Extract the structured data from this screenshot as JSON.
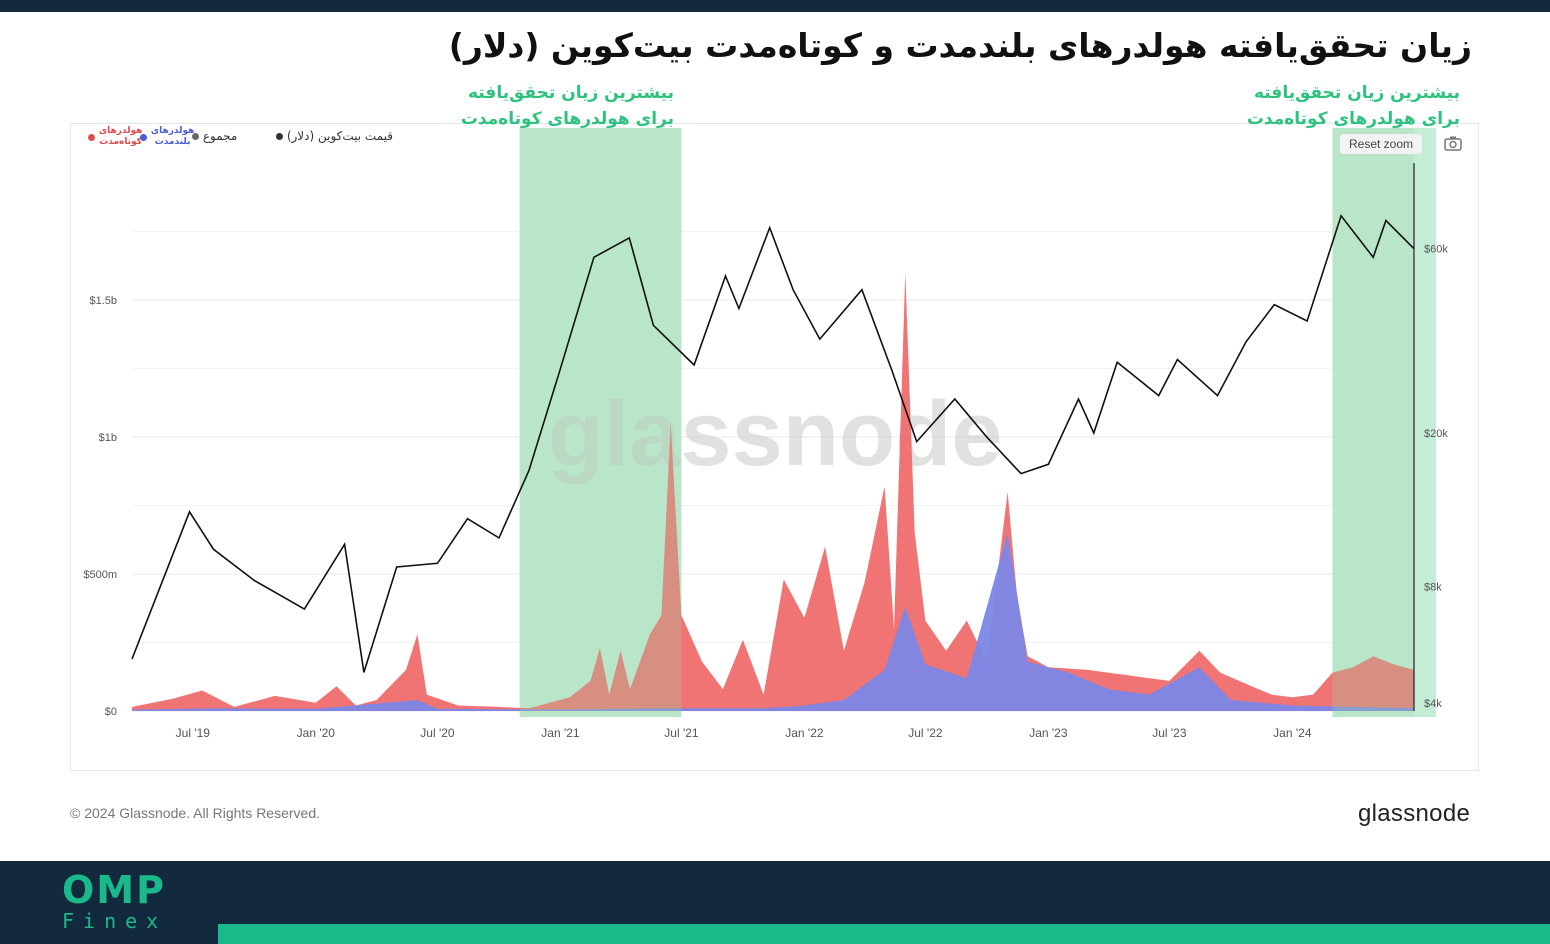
{
  "page": {
    "title": "زیان تحقق‌یافته هولدرهای بلندمدت و کوتاه‌مدت بیت‌کوین (دلار)",
    "annotations": [
      {
        "line1": "بیشترین زیان تحقق‌یافته",
        "line2": "برای هولدرهای کوتاه‌مدت"
      },
      {
        "line1": "بیشترین زیان تحقق‌یافته",
        "line2": "برای هولدرهای کوتاه‌مدت"
      }
    ],
    "reset_zoom": "Reset zoom",
    "copyright": "© 2024 Glassnode. All Rights Reserved.",
    "brand": "glassnode",
    "watermark": "glassnode",
    "footer_logo_top": "OMP",
    "footer_logo_bottom": "Finex",
    "legend": {
      "sth_line1": "هولدرهای",
      "sth_line2": "کوتاه‌مدت",
      "lth_line1": "هولدرهای",
      "lth_line2": "بلندمدت",
      "total": "مجموع",
      "price": "قیمت بیت‌کوین (دلار)"
    },
    "colors": {
      "sth": "#f06d6d",
      "lth": "#7b87e6",
      "price": "#111111",
      "highlight": "#c5ecd6",
      "accent": "#19b98a",
      "annotation": "#2ec27e"
    }
  },
  "chart_data": {
    "type": "area",
    "x_ticks": [
      "Jul '19",
      "Jan '20",
      "Jul '20",
      "Jan '21",
      "Jul '21",
      "Jan '22",
      "Jul '22",
      "Jan '23",
      "Jul '23",
      "Jan '24"
    ],
    "y_left": {
      "ticks": [
        "$0",
        "$500m",
        "$1b",
        "$1.5b"
      ],
      "tick_values": [
        0,
        500,
        1000,
        1500
      ],
      "range": [
        0,
        2000
      ],
      "unit": "USD millions"
    },
    "y_right": {
      "scale": "log",
      "ticks": [
        "$4k",
        "$8k",
        "$20k",
        "$60k"
      ],
      "tick_values": [
        4000,
        8000,
        20000,
        60000
      ],
      "range": [
        4000,
        100000
      ]
    },
    "x_range": [
      "2019-04-01",
      "2024-07-01"
    ],
    "highlight_ranges": [
      [
        "2020-11-01",
        "2021-07-01"
      ],
      [
        "2024-03-01",
        "2024-07-01"
      ]
    ],
    "series": [
      {
        "name": "هولدرهای کوتاه‌مدت",
        "kind": "area",
        "points": [
          [
            "2019-04-01",
            15
          ],
          [
            "2019-06-01",
            45
          ],
          [
            "2019-07-15",
            75
          ],
          [
            "2019-09-01",
            15
          ],
          [
            "2019-11-01",
            55
          ],
          [
            "2020-01-01",
            30
          ],
          [
            "2020-02-01",
            90
          ],
          [
            "2020-03-01",
            20
          ],
          [
            "2020-04-01",
            40
          ],
          [
            "2020-05-15",
            150
          ],
          [
            "2020-06-01",
            280
          ],
          [
            "2020-06-15",
            60
          ],
          [
            "2020-08-01",
            20
          ],
          [
            "2020-10-01",
            15
          ],
          [
            "2020-11-15",
            10
          ],
          [
            "2021-01-15",
            50
          ],
          [
            "2021-02-15",
            110
          ],
          [
            "2021-03-01",
            230
          ],
          [
            "2021-03-15",
            60
          ],
          [
            "2021-04-01",
            220
          ],
          [
            "2021-04-15",
            80
          ],
          [
            "2021-05-15",
            280
          ],
          [
            "2021-06-01",
            350
          ],
          [
            "2021-06-15",
            1050
          ],
          [
            "2021-07-01",
            350
          ],
          [
            "2021-08-01",
            180
          ],
          [
            "2021-09-01",
            80
          ],
          [
            "2021-10-01",
            260
          ],
          [
            "2021-11-01",
            60
          ],
          [
            "2021-12-01",
            480
          ],
          [
            "2022-01-01",
            340
          ],
          [
            "2022-02-01",
            600
          ],
          [
            "2022-03-01",
            220
          ],
          [
            "2022-04-01",
            470
          ],
          [
            "2022-05-01",
            820
          ],
          [
            "2022-05-15",
            300
          ],
          [
            "2022-06-01",
            1600
          ],
          [
            "2022-06-15",
            650
          ],
          [
            "2022-07-01",
            330
          ],
          [
            "2022-08-01",
            220
          ],
          [
            "2022-09-01",
            330
          ],
          [
            "2022-10-01",
            180
          ],
          [
            "2022-11-01",
            800
          ],
          [
            "2022-11-15",
            420
          ],
          [
            "2022-12-01",
            200
          ],
          [
            "2023-01-01",
            160
          ],
          [
            "2023-03-01",
            150
          ],
          [
            "2023-05-01",
            130
          ],
          [
            "2023-07-01",
            110
          ],
          [
            "2023-08-15",
            220
          ],
          [
            "2023-09-15",
            140
          ],
          [
            "2023-11-01",
            90
          ],
          [
            "2023-12-01",
            60
          ],
          [
            "2024-01-01",
            50
          ],
          [
            "2024-02-01",
            60
          ],
          [
            "2024-03-01",
            140
          ],
          [
            "2024-04-01",
            160
          ],
          [
            "2024-05-01",
            200
          ],
          [
            "2024-06-01",
            170
          ],
          [
            "2024-07-01",
            150
          ]
        ]
      },
      {
        "name": "هولدرهای بلندمدت",
        "kind": "area",
        "points": [
          [
            "2019-04-01",
            5
          ],
          [
            "2019-08-01",
            10
          ],
          [
            "2020-01-01",
            8
          ],
          [
            "2020-06-01",
            40
          ],
          [
            "2020-07-01",
            8
          ],
          [
            "2021-01-01",
            5
          ],
          [
            "2021-06-01",
            10
          ],
          [
            "2021-11-01",
            10
          ],
          [
            "2022-01-01",
            20
          ],
          [
            "2022-03-01",
            40
          ],
          [
            "2022-05-01",
            150
          ],
          [
            "2022-06-01",
            380
          ],
          [
            "2022-07-01",
            170
          ],
          [
            "2022-09-01",
            120
          ],
          [
            "2022-11-01",
            650
          ],
          [
            "2022-12-01",
            180
          ],
          [
            "2023-02-01",
            140
          ],
          [
            "2023-04-01",
            80
          ],
          [
            "2023-06-01",
            60
          ],
          [
            "2023-08-15",
            160
          ],
          [
            "2023-10-01",
            40
          ],
          [
            "2024-01-01",
            20
          ],
          [
            "2024-07-01",
            10
          ]
        ]
      },
      {
        "name": "قیمت بیت‌کوین (دلار)",
        "kind": "line",
        "axis": "right",
        "points": [
          [
            "2019-04-01",
            5200
          ],
          [
            "2019-06-26",
            12500
          ],
          [
            "2019-08-01",
            10000
          ],
          [
            "2019-10-01",
            8300
          ],
          [
            "2019-12-15",
            7000
          ],
          [
            "2020-02-13",
            10300
          ],
          [
            "2020-03-13",
            4800
          ],
          [
            "2020-05-01",
            9000
          ],
          [
            "2020-07-01",
            9200
          ],
          [
            "2020-08-15",
            12000
          ],
          [
            "2020-10-01",
            10700
          ],
          [
            "2020-11-15",
            16000
          ],
          [
            "2020-12-31",
            29000
          ],
          [
            "2021-02-20",
            57000
          ],
          [
            "2021-04-14",
            64000
          ],
          [
            "2021-05-20",
            38000
          ],
          [
            "2021-07-20",
            30000
          ],
          [
            "2021-09-05",
            51000
          ],
          [
            "2021-09-25",
            42000
          ],
          [
            "2021-11-10",
            68000
          ],
          [
            "2021-12-15",
            47000
          ],
          [
            "2022-01-24",
            35000
          ],
          [
            "2022-03-28",
            47000
          ],
          [
            "2022-05-12",
            29000
          ],
          [
            "2022-06-18",
            19000
          ],
          [
            "2022-08-14",
            24500
          ],
          [
            "2022-10-01",
            19500
          ],
          [
            "2022-11-21",
            15700
          ],
          [
            "2023-01-01",
            16600
          ],
          [
            "2023-02-15",
            24500
          ],
          [
            "2023-03-10",
            20000
          ],
          [
            "2023-04-14",
            30500
          ],
          [
            "2023-06-15",
            25000
          ],
          [
            "2023-07-13",
            31000
          ],
          [
            "2023-09-11",
            25000
          ],
          [
            "2023-10-24",
            34500
          ],
          [
            "2023-12-05",
            43000
          ],
          [
            "2024-01-23",
            39000
          ],
          [
            "2024-03-14",
            73000
          ],
          [
            "2024-05-01",
            57000
          ],
          [
            "2024-05-20",
            71000
          ],
          [
            "2024-07-01",
            60000
          ]
        ]
      }
    ]
  }
}
